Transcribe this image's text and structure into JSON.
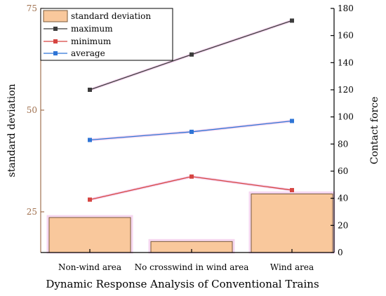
{
  "chart_data": {
    "type": "bar",
    "title": "Dynamic Response Analysis of Conventional Trains",
    "categories": [
      "Non-wind area",
      "No crosswind in wind area",
      "Wind area"
    ],
    "y_left": {
      "label": "standard deviation",
      "lim": [
        15,
        75
      ],
      "ticks": [
        25,
        50,
        75
      ],
      "color": "#a0714f"
    },
    "y_right": {
      "label": "Contact force",
      "lim": [
        0,
        180
      ],
      "ticks": [
        0,
        20,
        40,
        60,
        80,
        100,
        120,
        140,
        160,
        180
      ],
      "color": "#000000"
    },
    "grid": false,
    "legend_position": "top-left",
    "series": [
      {
        "name": "standard deviation",
        "type": "bar",
        "axis": "left",
        "values": [
          23.6,
          17.7,
          29.4
        ],
        "color": "#f9c89c",
        "stroke": "#7a5a3a"
      },
      {
        "name": "maximum",
        "type": "line",
        "axis": "right",
        "values": [
          120,
          146,
          171
        ],
        "color": "#3c3c3c"
      },
      {
        "name": "minimum",
        "type": "line",
        "axis": "right",
        "values": [
          39,
          56,
          46
        ],
        "color": "#d64541"
      },
      {
        "name": "average",
        "type": "line",
        "axis": "right",
        "values": [
          83,
          89,
          97
        ],
        "color": "#2f75d6"
      }
    ]
  }
}
